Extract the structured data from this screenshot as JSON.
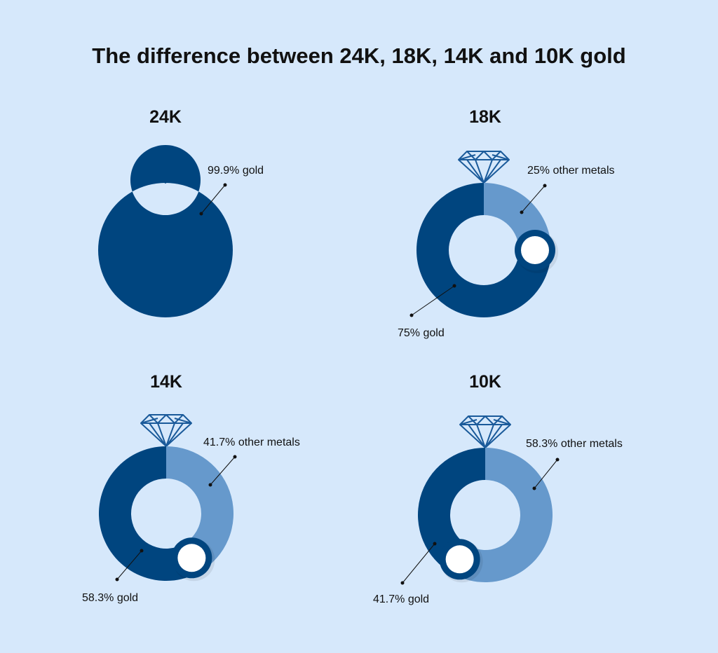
{
  "title": "The difference between 24K, 18K, 14K and 10K gold",
  "colors": {
    "background": "#d6e8fb",
    "gold": "#00457f",
    "other_metals": "#6699cc",
    "diamond": "#1a5a9a"
  },
  "icons": {
    "gem": "diamond-icon"
  },
  "chart_data": [
    {
      "type": "pie",
      "variant": "donut",
      "title": "24K",
      "categories": [
        "gold"
      ],
      "values": [
        99.9
      ],
      "labels": [
        "99.9% gold"
      ]
    },
    {
      "type": "pie",
      "variant": "donut",
      "title": "18K",
      "categories": [
        "other metals",
        "gold"
      ],
      "values": [
        25,
        75
      ],
      "labels": [
        "25% other metals",
        "75% gold"
      ]
    },
    {
      "type": "pie",
      "variant": "donut",
      "title": "14K",
      "categories": [
        "other metals",
        "gold"
      ],
      "values": [
        41.7,
        58.3
      ],
      "labels": [
        "41.7% other metals",
        "58.3% gold"
      ]
    },
    {
      "type": "pie",
      "variant": "donut",
      "title": "10K",
      "categories": [
        "other metals",
        "gold"
      ],
      "values": [
        58.3,
        41.7
      ],
      "labels": [
        "58.3% other metals",
        "41.7% gold"
      ]
    }
  ]
}
